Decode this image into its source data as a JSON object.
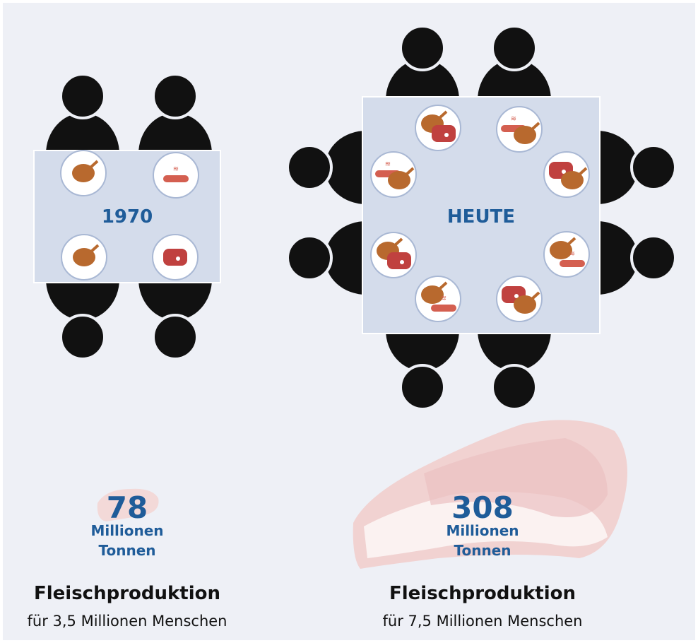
{
  "panels": [
    {
      "label": "1970",
      "value": 78,
      "unit_lines": [
        "Millionen",
        "Tonnen"
      ],
      "title": "Fleischproduktion",
      "subtitle": "für 3,5 Millionen Menschen"
    },
    {
      "label": "HEUTE",
      "value": 308,
      "unit_lines": [
        "Millionen",
        "Tonnen"
      ],
      "title": "Fleischproduktion",
      "subtitle": "für 7,5 Millionen Menschen"
    }
  ]
}
